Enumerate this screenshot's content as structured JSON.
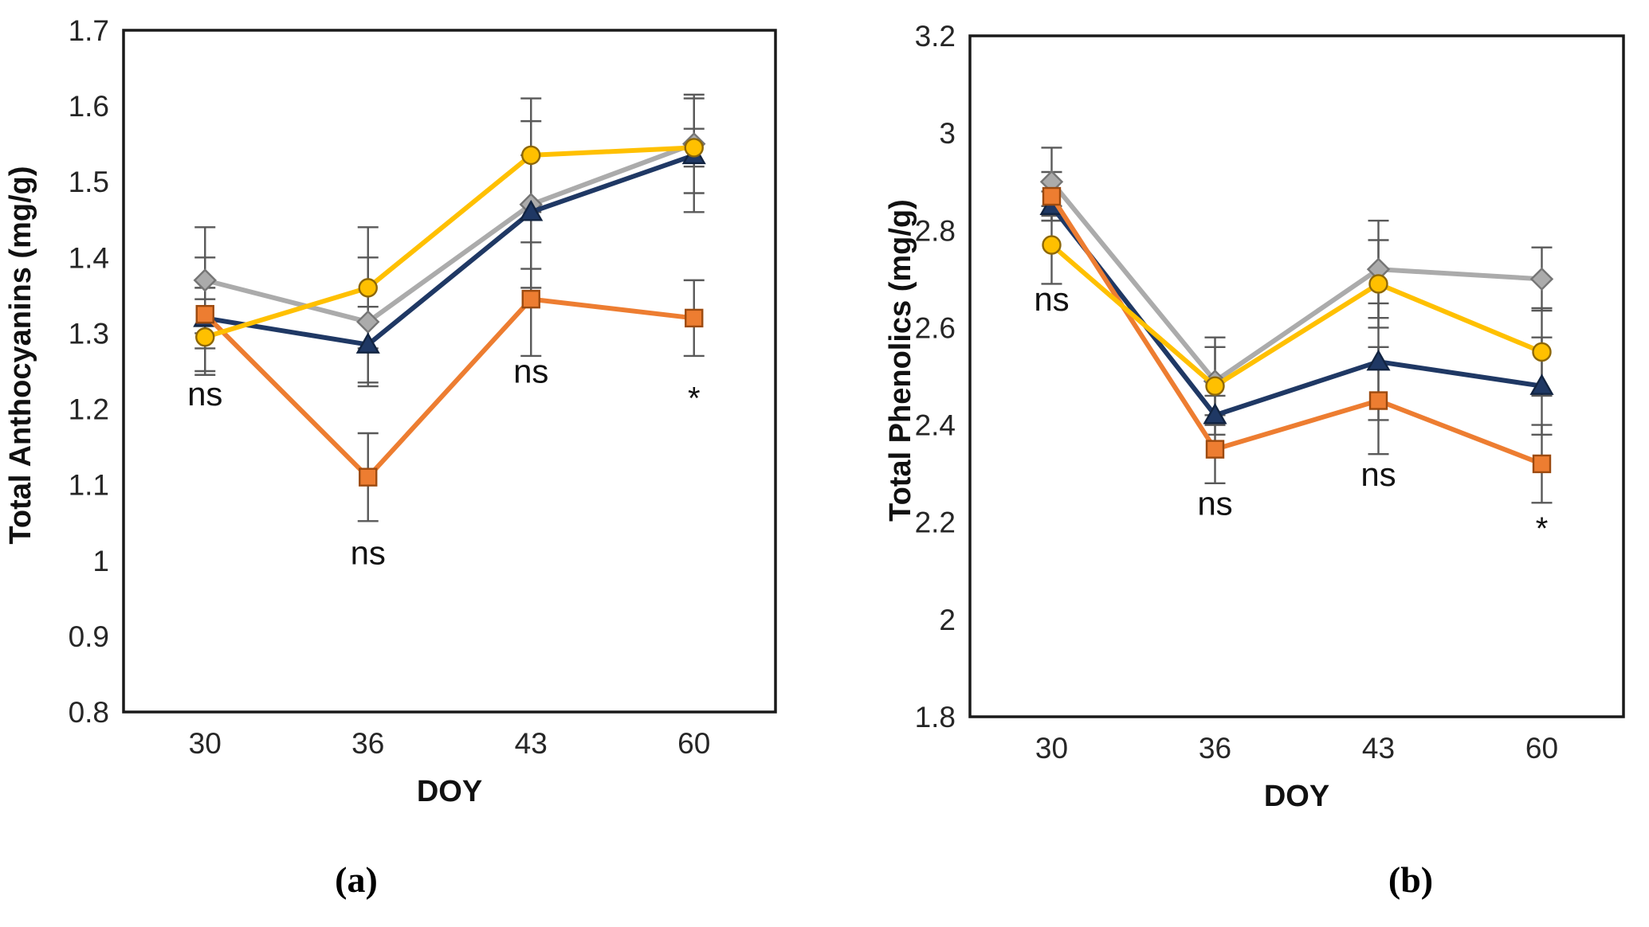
{
  "figure": {
    "captions": {
      "a": "(a)",
      "b": "(b)"
    },
    "colors": {
      "frame": "#1a1a1a",
      "error_bar": "#595959",
      "tick_text": "#262626",
      "title_text": "#111111"
    }
  },
  "chart_data": [
    {
      "type": "line",
      "panel": "a",
      "title": "",
      "xlabel": "DOY",
      "ylabel": "Total Anthocyanins (mg/g)",
      "categories": [
        "30",
        "36",
        "43",
        "60"
      ],
      "ylim": [
        0.8,
        1.7
      ],
      "ytick_step": 0.1,
      "grid": false,
      "legend_position": "none",
      "series": [
        {
          "name": "gray-diamond",
          "marker": "diamond",
          "color": "#ABABAB",
          "edge": "#757575",
          "values": [
            1.37,
            1.315,
            1.47,
            1.55
          ],
          "errors": [
            0.07,
            0.085,
            0.11,
            0.065
          ]
        },
        {
          "name": "navy-triangle",
          "marker": "triangle",
          "color": "#1F3864",
          "edge": "#122441",
          "values": [
            1.32,
            1.285,
            1.46,
            1.535
          ],
          "errors": [
            0.04,
            0.05,
            0.075,
            0.075
          ]
        },
        {
          "name": "orange-square",
          "marker": "square",
          "color": "#ED7D31",
          "edge": "#9C4A0F",
          "values": [
            1.325,
            1.11,
            1.345,
            1.32
          ],
          "errors": [
            0.075,
            0.058,
            0.075,
            0.05
          ]
        },
        {
          "name": "yellow-circle",
          "marker": "circle",
          "color": "#FFC000",
          "edge": "#8D6708",
          "values": [
            1.295,
            1.36,
            1.535,
            1.545
          ],
          "errors": [
            0.05,
            0.08,
            0.075,
            0.025
          ]
        }
      ],
      "annotations": [
        {
          "x": "30",
          "text": "ns",
          "value": 1.205
        },
        {
          "x": "36",
          "text": "ns",
          "value": 0.995
        },
        {
          "x": "43",
          "text": "ns",
          "value": 1.235
        },
        {
          "x": "60",
          "text": "*",
          "value": 1.2
        }
      ]
    },
    {
      "type": "line",
      "panel": "b",
      "title": "",
      "xlabel": "DOY",
      "ylabel": "Total Phenolics (mg/g)",
      "categories": [
        "30",
        "36",
        "43",
        "60"
      ],
      "ylim": [
        1.8,
        3.2
      ],
      "ytick_step": 0.2,
      "grid": false,
      "legend_position": "none",
      "series": [
        {
          "name": "gray-diamond",
          "marker": "diamond",
          "color": "#ABABAB",
          "edge": "#757575",
          "values": [
            2.9,
            2.49,
            2.72,
            2.7
          ],
          "errors": [
            0.07,
            0.09,
            0.1,
            0.065
          ]
        },
        {
          "name": "navy-triangle",
          "marker": "triangle",
          "color": "#1F3864",
          "edge": "#122441",
          "values": [
            2.85,
            2.42,
            2.53,
            2.48
          ],
          "errors": [
            0.03,
            0.04,
            0.12,
            0.1
          ]
        },
        {
          "name": "orange-square",
          "marker": "square",
          "color": "#ED7D31",
          "edge": "#9C4A0F",
          "values": [
            2.87,
            2.35,
            2.45,
            2.32
          ],
          "errors": [
            0.05,
            0.07,
            0.11,
            0.08
          ]
        },
        {
          "name": "yellow-circle",
          "marker": "circle",
          "color": "#FFC000",
          "edge": "#8D6708",
          "values": [
            2.77,
            2.48,
            2.69,
            2.55
          ],
          "errors": [
            0.08,
            0.08,
            0.09,
            0.09
          ]
        }
      ],
      "annotations": [
        {
          "x": "30",
          "text": "ns",
          "value": 2.635
        },
        {
          "x": "36",
          "text": "ns",
          "value": 2.215
        },
        {
          "x": "43",
          "text": "ns",
          "value": 2.275
        },
        {
          "x": "60",
          "text": "*",
          "value": 2.165
        }
      ]
    }
  ]
}
